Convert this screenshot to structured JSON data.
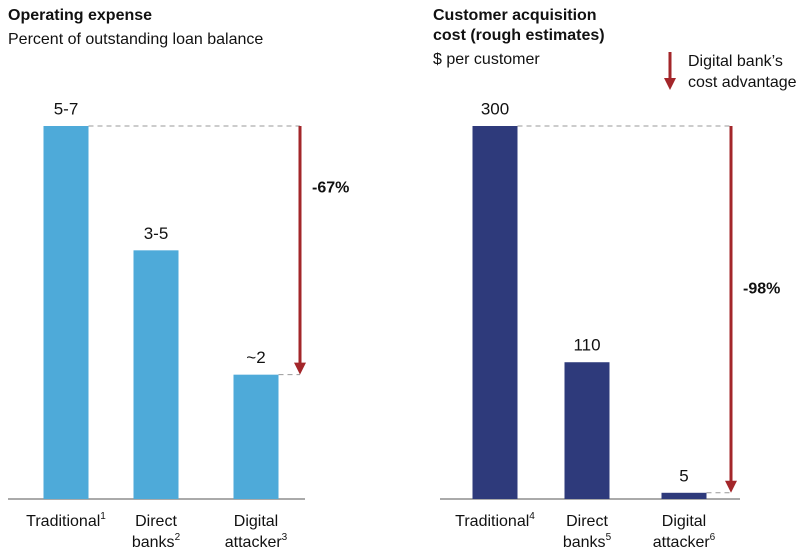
{
  "chart_data": [
    {
      "type": "bar",
      "title": [
        "Operating expense"
      ],
      "subtitle": "Percent of outstanding loan balance",
      "categories": [
        [
          "Traditional"
        ],
        [
          "Direct",
          "banks"
        ],
        [
          "Digital",
          "attacker"
        ]
      ],
      "footnotes": [
        "1",
        "2",
        "3"
      ],
      "values": [
        6,
        4,
        2
      ],
      "value_labels": [
        "5-7",
        "3-5",
        "~2"
      ],
      "color": "#4eaad9",
      "ylim": [
        0,
        6
      ],
      "change_label": "-67%",
      "arrow_color": "#a3262a"
    },
    {
      "type": "bar",
      "title": [
        "Customer acquisition",
        "cost (rough estimates)"
      ],
      "subtitle": "$ per customer",
      "categories": [
        [
          "Traditional"
        ],
        [
          "Direct",
          "banks"
        ],
        [
          "Digital",
          "attacker"
        ]
      ],
      "footnotes": [
        "4",
        "5",
        "6"
      ],
      "values": [
        300,
        110,
        5
      ],
      "color": "#2e3a7b",
      "ylim": [
        0,
        300
      ],
      "change_label": "-98%",
      "arrow_color": "#a3262a",
      "arrow_legend": [
        "Digital bank’s",
        "cost advantage"
      ]
    }
  ]
}
